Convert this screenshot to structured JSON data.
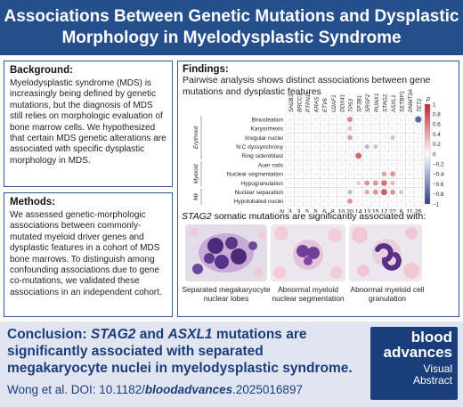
{
  "title": {
    "line1": "Associations Between Genetic Mutations and Dysplastic",
    "line2": "Morphology in Myelodysplastic Syndrome"
  },
  "background": {
    "heading": "Background:",
    "text": "Myelodysplastic syndrome (MDS) is increasingly being defined by genetic mutations, but the diagnosis of MDS still relies on morphologic evaluation of bone marrow cells. We hypothesized that certain MDS genetic alterations are associated with specific dysplastic morphology in MDS."
  },
  "methods": {
    "heading": "Methods:",
    "text": "We assessed genetic-morphologic associations between commonly-mutated myeloid driver genes and dysplastic features in a cohort of MDS bone marrows. To distinguish among confounding associations due to gene co-mutations, we validated these associations in an independent cohort."
  },
  "findings": {
    "heading": "Findings:",
    "text": "Pairwise analysis shows distinct associations between gene mutations and dysplastic features",
    "stag2_prefix": "STAG2",
    "stag2_text": " somatic mutations are significantly associated with:",
    "captions": [
      "Separated megakaryocyte nuclear lobes",
      "Abnormal myeloid nuclear segmentation",
      "Abnormal myeloid cell granulation"
    ]
  },
  "chart_data": {
    "type": "heatmap",
    "genes": [
      "SH2B3",
      "BRCC3",
      "PTPN11",
      "KRAS",
      "ETV6",
      "U2AF1",
      "DDX41",
      "TP53",
      "SF3B1",
      "SRSF2",
      "RUNX1",
      "STAG2",
      "ASXL1",
      "SETBP1",
      "DNMT3A",
      "TET2"
    ],
    "n_values": [
      "3",
      "3",
      "5",
      "5",
      "6",
      "8",
      "10",
      "20",
      "14",
      "13",
      "15",
      "17",
      "22",
      "6",
      "11",
      "25"
    ],
    "n_prefix": "N",
    "features": [
      "Binucleation",
      "Karyorrhexis",
      "Irregular nuclei",
      "N:C dyssynchrony",
      "Ring sideroblast",
      "Auer rods",
      "Nuclear segmentation",
      "Hypogranulation",
      "Nuclear separation",
      "Hypolobated nuclei"
    ],
    "groups": [
      {
        "name": "Erythroid",
        "rows": [
          0,
          1,
          2,
          3,
          4
        ]
      },
      {
        "name": "Myeloid",
        "rows": [
          5,
          6,
          7
        ]
      },
      {
        "name": "Mk",
        "rows": [
          8,
          9
        ]
      }
    ],
    "legend_title": "ρ",
    "legend_ticks": [
      "1",
      "0.8",
      "0.6",
      "0.4",
      "0.2",
      "0",
      "−0.2",
      "−0.4",
      "−0.6",
      "−0.8",
      "−1"
    ],
    "values": [
      [
        0,
        0,
        0,
        0,
        0,
        0,
        0,
        0.55,
        0,
        0,
        0,
        0,
        0,
        0,
        0,
        -0.8
      ],
      [
        0,
        0,
        0,
        0,
        0,
        0,
        0,
        0.3,
        0,
        0,
        0,
        0,
        0,
        0,
        0,
        0
      ],
      [
        0,
        0,
        0,
        0,
        0,
        0,
        0,
        0.45,
        0,
        0,
        0,
        0,
        -0.3,
        0,
        0,
        0
      ],
      [
        0,
        0,
        0,
        0,
        0,
        0,
        0,
        0,
        0,
        -0.35,
        -0.3,
        0,
        0,
        0,
        0,
        0
      ],
      [
        0,
        0,
        0,
        0,
        0,
        0,
        0,
        0,
        0.7,
        0,
        0,
        0,
        0,
        0,
        0,
        0
      ],
      [
        0,
        0,
        0,
        0,
        0,
        0,
        0,
        0,
        0,
        0,
        0,
        0,
        0,
        0,
        0,
        0
      ],
      [
        0,
        0,
        0,
        0,
        0,
        0,
        0,
        0,
        0,
        0,
        0,
        0.45,
        0.5,
        0,
        0,
        0
      ],
      [
        0,
        0,
        0,
        0,
        0,
        0,
        0,
        0,
        0.25,
        0.5,
        0.5,
        0.65,
        0.35,
        0,
        0,
        0
      ],
      [
        0,
        0,
        0,
        0,
        0,
        0,
        0,
        -0.35,
        0,
        0.4,
        0.5,
        0.75,
        0.5,
        0.3,
        0,
        0
      ],
      [
        0,
        0,
        0,
        0,
        0,
        0,
        0,
        0.5,
        0,
        0,
        0,
        0,
        0,
        0,
        0,
        0
      ]
    ]
  },
  "conclusion": {
    "label": "Conclusion:",
    "gene1": "STAG2",
    "and": " and ",
    "gene2": "ASXL1",
    "text": " mutations are significantly associated with separated megakaryocyte nuclei in myelodysplastic  syndrome."
  },
  "citation": {
    "prefix": "Wong et al. DOI: 10.1182/",
    "journal": "bloodadvances",
    "suffix": ".2025016897"
  },
  "logo": {
    "line1": "blood",
    "line2": "advances",
    "line3": "Visual",
    "line4": "Abstract"
  },
  "colors": {
    "title_bg": "#254e8c",
    "box_border": "#2d5b99",
    "bottom_bg": "#e1e5f1",
    "text_blue": "#1b3d7a",
    "positive": "#c0222c",
    "negative": "#2a3f8f"
  }
}
